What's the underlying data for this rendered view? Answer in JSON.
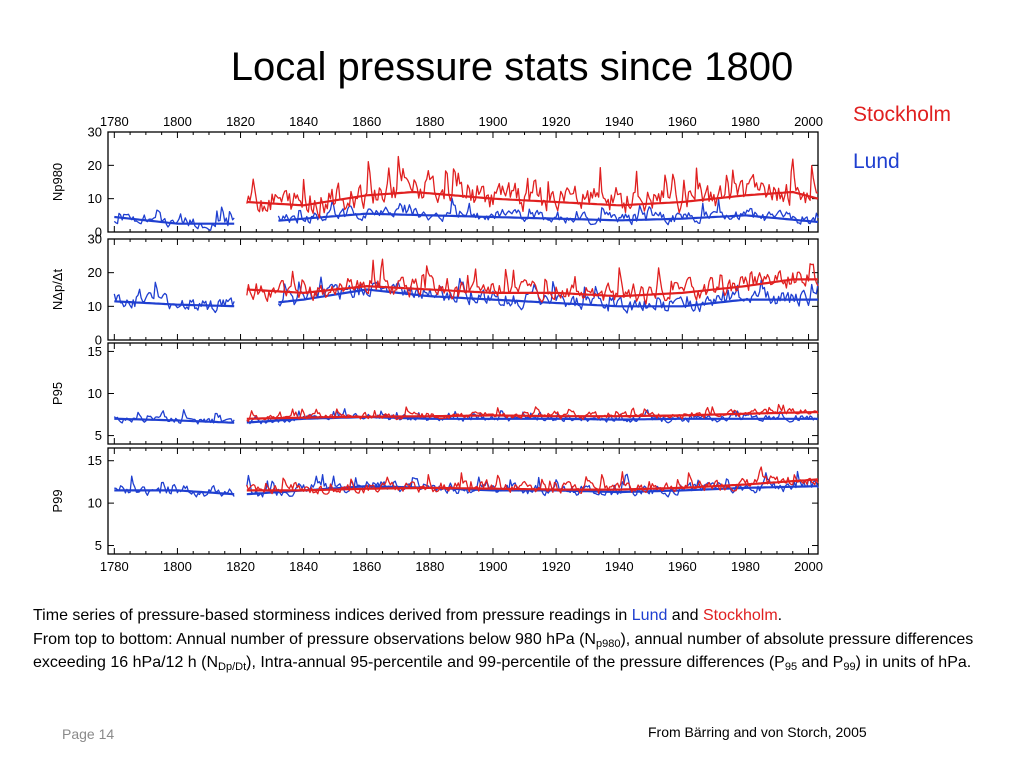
{
  "slide": {
    "title": "Local pressure stats since 1800",
    "legend": [
      {
        "label": "Stockholm",
        "color": "#e02020"
      },
      {
        "label": "Lund",
        "color": "#1f3fd0"
      }
    ],
    "caption": {
      "line1_prefix": "Time series of pressure-based storminess indices derived from pressure readings in ",
      "lund": "Lund",
      "and": " and ",
      "stockholm": "Stockholm",
      "period": ".",
      "line2_a": "From top to bottom: Annual number of pressure observations below 980 hPa (N",
      "sub_p980": "p980",
      "line2_b": "), annual number of absolute pressure differences exceeding 16 hPa/12 h (N",
      "sub_dpdt": "Dp/Dt",
      "line2_c": "), Intra-annual 95-percentile and 99-percentile of the pressure differences (P",
      "sub_95": "95",
      "line2_d": " and P",
      "sub_99": "99",
      "line2_e": ") in units of hPa."
    },
    "page_number": "Page 14",
    "credit": "From Bärring and von Storch, 2005"
  },
  "chart_data": [
    {
      "type": "line",
      "ylabel": "Np980",
      "xlim": [
        1778,
        2003
      ],
      "ylim": [
        0,
        30
      ],
      "yticks": [
        0,
        10,
        20,
        30
      ],
      "xticks": [
        1780,
        1800,
        1820,
        1840,
        1860,
        1880,
        1900,
        1920,
        1940,
        1960,
        1980,
        2000
      ],
      "series": [
        {
          "name": "Lund",
          "color": "#1f3fd0",
          "x_range": [
            1780,
            2003
          ],
          "gap": [
            1818,
            1832
          ],
          "base": 4,
          "amp": 6,
          "noise": 2,
          "trend": [
            [
              1780,
              4.5
            ],
            [
              1800,
              2.5
            ],
            [
              1820,
              2.5
            ],
            [
              1840,
              4
            ],
            [
              1860,
              5.5
            ],
            [
              1880,
              5
            ],
            [
              1900,
              4.5
            ],
            [
              1920,
              4
            ],
            [
              1940,
              3.5
            ],
            [
              1960,
              4
            ],
            [
              1980,
              5
            ],
            [
              2003,
              3
            ]
          ]
        },
        {
          "name": "Stockholm",
          "color": "#e02020",
          "x_range": [
            1822,
            2003
          ],
          "gap": null,
          "base": 10,
          "amp": 14,
          "noise": 4,
          "trend": [
            [
              1822,
              9
            ],
            [
              1840,
              8
            ],
            [
              1860,
              11
            ],
            [
              1875,
              12
            ],
            [
              1900,
              10
            ],
            [
              1920,
              9
            ],
            [
              1940,
              8
            ],
            [
              1960,
              9
            ],
            [
              1980,
              11
            ],
            [
              1995,
              12
            ],
            [
              2003,
              10
            ]
          ]
        }
      ]
    },
    {
      "type": "line",
      "ylabel": "NΔp/Δt",
      "xlim": [
        1778,
        2003
      ],
      "ylim": [
        0,
        30
      ],
      "yticks": [
        0,
        10,
        20,
        30
      ],
      "xticks": [
        1780,
        1800,
        1820,
        1840,
        1860,
        1880,
        1900,
        1920,
        1940,
        1960,
        1980,
        2000
      ],
      "series": [
        {
          "name": "Lund",
          "color": "#1f3fd0",
          "x_range": [
            1780,
            2003
          ],
          "gap": [
            1818,
            1832
          ],
          "base": 12,
          "amp": 8,
          "noise": 3,
          "trend": [
            [
              1780,
              11.5
            ],
            [
              1800,
              10.5
            ],
            [
              1820,
              10
            ],
            [
              1840,
              12
            ],
            [
              1860,
              15
            ],
            [
              1880,
              13
            ],
            [
              1900,
              12
            ],
            [
              1920,
              11
            ],
            [
              1940,
              10
            ],
            [
              1960,
              10
            ],
            [
              1980,
              12
            ],
            [
              2003,
              12
            ]
          ]
        },
        {
          "name": "Stockholm",
          "color": "#e02020",
          "x_range": [
            1822,
            2003
          ],
          "gap": null,
          "base": 14,
          "amp": 10,
          "noise": 3,
          "trend": [
            [
              1822,
              15
            ],
            [
              1840,
              14
            ],
            [
              1860,
              16
            ],
            [
              1880,
              15
            ],
            [
              1900,
              14
            ],
            [
              1920,
              14
            ],
            [
              1940,
              13
            ],
            [
              1960,
              14
            ],
            [
              1980,
              16
            ],
            [
              1995,
              18
            ],
            [
              2003,
              18
            ]
          ]
        }
      ]
    },
    {
      "type": "line",
      "ylabel": "P95",
      "xlim": [
        1778,
        2003
      ],
      "ylim": [
        4,
        16
      ],
      "yticks": [
        5,
        10,
        15
      ],
      "xticks": [
        1780,
        1800,
        1820,
        1840,
        1860,
        1880,
        1900,
        1920,
        1940,
        1960,
        1980,
        2000
      ],
      "series": [
        {
          "name": "Lund",
          "color": "#1f3fd0",
          "x_range": [
            1780,
            2003
          ],
          "gap": [
            1818,
            1822
          ],
          "base": 7,
          "amp": 1.4,
          "noise": 0.5,
          "trend": [
            [
              1780,
              7
            ],
            [
              1800,
              6.8
            ],
            [
              1820,
              6.5
            ],
            [
              1840,
              7
            ],
            [
              1860,
              7.2
            ],
            [
              1880,
              7
            ],
            [
              1900,
              7
            ],
            [
              1920,
              7
            ],
            [
              1940,
              6.9
            ],
            [
              1960,
              7
            ],
            [
              1980,
              7
            ],
            [
              2003,
              7
            ]
          ]
        },
        {
          "name": "Stockholm",
          "color": "#e02020",
          "x_range": [
            1822,
            2003
          ],
          "gap": null,
          "base": 7.3,
          "amp": 1.4,
          "noise": 0.4,
          "trend": [
            [
              1822,
              7
            ],
            [
              1850,
              7.2
            ],
            [
              1880,
              7.3
            ],
            [
              1900,
              7.4
            ],
            [
              1920,
              7.3
            ],
            [
              1940,
              7.3
            ],
            [
              1960,
              7.4
            ],
            [
              1980,
              7.6
            ],
            [
              2003,
              7.8
            ]
          ]
        }
      ]
    },
    {
      "type": "line",
      "ylabel": "P99",
      "xlim": [
        1778,
        2003
      ],
      "ylim": [
        4,
        16.5
      ],
      "yticks": [
        5,
        10,
        15
      ],
      "xticks": [
        1780,
        1800,
        1820,
        1840,
        1860,
        1880,
        1900,
        1920,
        1940,
        1960,
        1980,
        2000
      ],
      "xlabel_ticks": true,
      "series": [
        {
          "name": "Lund",
          "color": "#1f3fd0",
          "x_range": [
            1780,
            2003
          ],
          "gap": [
            1818,
            1822
          ],
          "base": 11.5,
          "amp": 2.2,
          "noise": 0.8,
          "trend": [
            [
              1780,
              11.5
            ],
            [
              1800,
              11.5
            ],
            [
              1820,
              11
            ],
            [
              1840,
              11.5
            ],
            [
              1860,
              12
            ],
            [
              1880,
              11.8
            ],
            [
              1900,
              11.5
            ],
            [
              1920,
              11.5
            ],
            [
              1940,
              11.3
            ],
            [
              1960,
              11.5
            ],
            [
              1980,
              11.8
            ],
            [
              2003,
              12
            ]
          ]
        },
        {
          "name": "Stockholm",
          "color": "#e02020",
          "x_range": [
            1822,
            2003
          ],
          "gap": null,
          "base": 11.8,
          "amp": 2.2,
          "noise": 0.7,
          "trend": [
            [
              1822,
              11.5
            ],
            [
              1840,
              11.5
            ],
            [
              1860,
              11.7
            ],
            [
              1880,
              11.8
            ],
            [
              1900,
              11.7
            ],
            [
              1920,
              11.6
            ],
            [
              1940,
              11.6
            ],
            [
              1960,
              11.8
            ],
            [
              1980,
              12.2
            ],
            [
              2003,
              12.8
            ]
          ]
        }
      ]
    }
  ]
}
